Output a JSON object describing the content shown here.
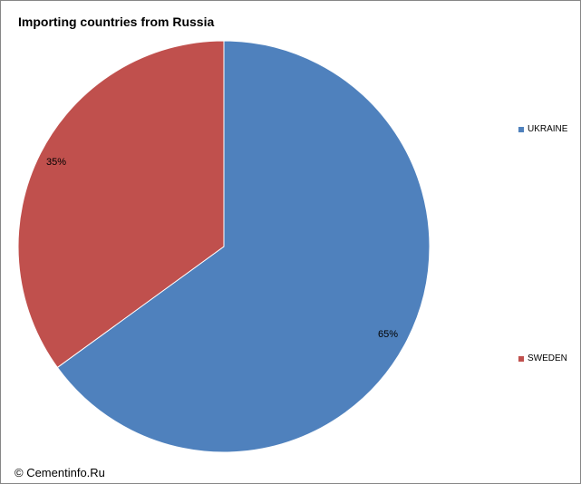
{
  "chart_data": {
    "type": "pie",
    "title": "Importing countries from Russia",
    "slices": [
      {
        "name": "UKRAINE",
        "value": 65,
        "label": "65%",
        "color": "#4f81bd"
      },
      {
        "name": "SWEDEN",
        "value": 35,
        "label": "35%",
        "color": "#c0504d"
      }
    ],
    "start": "12 o'clock",
    "direction": "clockwise",
    "legend_position": "right"
  },
  "footer": {
    "copyright": "© Cementinfo.Ru"
  }
}
